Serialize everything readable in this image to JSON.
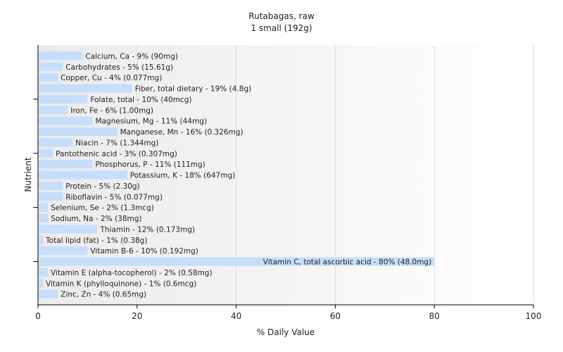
{
  "chart_data": {
    "type": "bar",
    "orientation": "horizontal",
    "title": "Rutabagas, raw",
    "subtitle": "1 small (192g)",
    "xlabel": "% Daily Value",
    "ylabel": "Nutrient",
    "xlim": [
      0,
      100
    ],
    "x_ticks": [
      "0",
      "20",
      "40",
      "60",
      "80",
      "100"
    ],
    "grid": "vertical",
    "bar_color": "#c6defb",
    "categories": [
      "Calcium, Ca",
      "Carbohydrates",
      "Copper, Cu",
      "Fiber, total dietary",
      "Folate, total",
      "Iron, Fe",
      "Magnesium, Mg",
      "Manganese, Mn",
      "Niacin",
      "Pantothenic acid",
      "Phosphorus, P",
      "Potassium, K",
      "Protein",
      "Riboflavin",
      "Selenium, Se",
      "Sodium, Na",
      "Thiamin",
      "Total lipid (fat)",
      "Vitamin B-6",
      "Vitamin C, total ascorbic acid",
      "Vitamin E (alpha-tocopherol)",
      "Vitamin K (phylloquinone)",
      "Zinc, Zn"
    ],
    "values": [
      9,
      5,
      4,
      19,
      10,
      6,
      11,
      16,
      7,
      3,
      11,
      18,
      5,
      5,
      2,
      2,
      12,
      1,
      10,
      80,
      2,
      1,
      4
    ],
    "data_labels": [
      "Calcium, Ca - 9% (90mg)",
      "Carbohydrates - 5% (15.61g)",
      "Copper, Cu - 4% (0.077mg)",
      "Fiber, total dietary - 19% (4.8g)",
      "Folate, total - 10% (40mcg)",
      "Iron, Fe - 6% (1.00mg)",
      "Magnesium, Mg - 11% (44mg)",
      "Manganese, Mn - 16% (0.326mg)",
      "Niacin - 7% (1.344mg)",
      "Pantothenic acid - 3% (0.307mg)",
      "Phosphorus, P - 11% (111mg)",
      "Potassium, K - 18% (647mg)",
      "Protein - 5% (2.30g)",
      "Riboflavin - 5% (0.077mg)",
      "Selenium, Se - 2% (1.3mcg)",
      "Sodium, Na - 2% (38mg)",
      "Thiamin - 12% (0.173mg)",
      "Total lipid (fat) - 1% (0.38g)",
      "Vitamin B-6 - 10% (0.192mg)",
      "Vitamin C, total ascorbic acid - 80% (48.0mg)",
      "Vitamin E (alpha-tocopherol) - 2% (0.58mg)",
      "Vitamin K (phylloquinone) - 1% (0.6mcg)",
      "Zinc, Zn - 4% (0.65mg)"
    ]
  }
}
